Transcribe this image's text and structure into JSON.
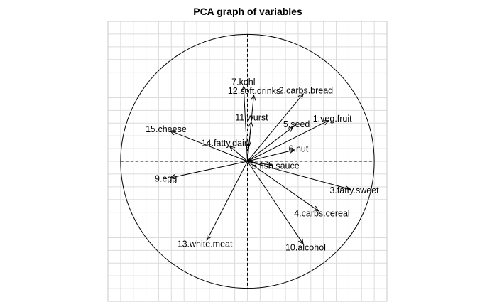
{
  "chart_data": {
    "type": "scatter",
    "subtype": "pca-correlation-circle",
    "title": "PCA graph of variables",
    "xlim": [
      -1.1,
      1.1
    ],
    "ylim": [
      -1.1,
      1.1
    ],
    "grid": true,
    "grid_step": 0.1,
    "unit_circle_radius": 1,
    "variables": [
      {
        "label": "1.veg.fruit",
        "x": 0.64,
        "y": 0.32
      },
      {
        "label": "2.carbs.bread",
        "x": 0.44,
        "y": 0.53
      },
      {
        "label": "3.fatty.sweet",
        "x": 0.81,
        "y": -0.22
      },
      {
        "label": "4.carbs.cereal",
        "x": 0.56,
        "y": -0.39
      },
      {
        "label": "5.seed",
        "x": 0.36,
        "y": 0.27
      },
      {
        "label": "6.nut",
        "x": 0.37,
        "y": 0.09
      },
      {
        "label": "7.kohl",
        "x": -0.03,
        "y": 0.59
      },
      {
        "label": "8.fish.sauce",
        "x": 0.19,
        "y": -0.03
      },
      {
        "label": "9.egg",
        "x": -0.61,
        "y": -0.13
      },
      {
        "label": "10.alcohol",
        "x": 0.44,
        "y": -0.65
      },
      {
        "label": "11.wurst",
        "x": 0.03,
        "y": 0.31
      },
      {
        "label": "12.soft.drinks",
        "x": 0.05,
        "y": 0.52
      },
      {
        "label": "13.white.meat",
        "x": -0.32,
        "y": -0.62
      },
      {
        "label": "14.fatty.dairy",
        "x": -0.14,
        "y": 0.12
      },
      {
        "label": "15.cheese",
        "x": -0.61,
        "y": 0.24
      }
    ]
  }
}
